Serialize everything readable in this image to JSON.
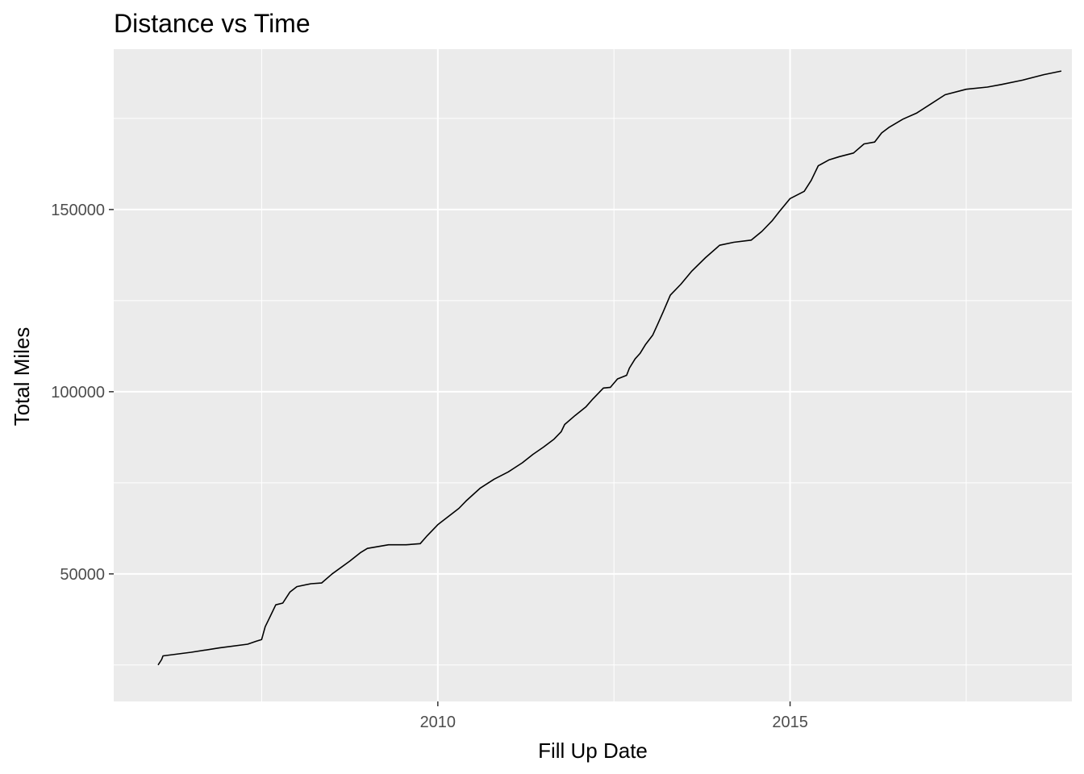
{
  "chart_data": {
    "type": "line",
    "title": "Distance vs Time",
    "xlabel": "Fill Up Date",
    "ylabel": "Total Miles",
    "xlim": [
      2005.4,
      2019.0
    ],
    "ylim": [
      15000,
      194000
    ],
    "x_major_ticks": [
      2010,
      2015
    ],
    "x_minor_ticks": [
      2007.5,
      2012.5,
      2017.5
    ],
    "y_major_ticks": [
      50000,
      100000,
      150000
    ],
    "y_minor_ticks": [
      25000,
      75000,
      125000,
      175000
    ],
    "x_tick_labels": [
      "2010",
      "2015"
    ],
    "y_tick_labels": [
      "50000",
      "100000",
      "150000"
    ],
    "grid": true,
    "legend": "none",
    "series": [
      {
        "name": "Total Miles",
        "color": "#000000",
        "x": [
          2006.03,
          2006.08,
          2006.1,
          2006.5,
          2006.9,
          2007.3,
          2007.42,
          2007.5,
          2007.55,
          2007.6,
          2007.7,
          2007.8,
          2007.85,
          2007.9,
          2008.0,
          2008.2,
          2008.35,
          2008.5,
          2008.75,
          2008.9,
          2009.0,
          2009.3,
          2009.55,
          2009.75,
          2009.85,
          2010.0,
          2010.3,
          2010.4,
          2010.6,
          2010.8,
          2011.0,
          2011.2,
          2011.35,
          2011.5,
          2011.65,
          2011.75,
          2011.8,
          2011.95,
          2012.1,
          2012.2,
          2012.35,
          2012.45,
          2012.55,
          2012.68,
          2012.72,
          2012.8,
          2012.87,
          2012.95,
          2013.05,
          2013.12,
          2013.2,
          2013.3,
          2013.45,
          2013.6,
          2013.8,
          2014.0,
          2014.2,
          2014.45,
          2014.6,
          2014.75,
          2014.85,
          2015.0,
          2015.2,
          2015.3,
          2015.4,
          2015.55,
          2015.7,
          2015.9,
          2016.05,
          2016.2,
          2016.3,
          2016.4,
          2016.6,
          2016.8,
          2017.0,
          2017.2,
          2017.5,
          2017.8,
          2018.0,
          2018.3,
          2018.6,
          2018.85
        ],
        "y": [
          25000,
          26500,
          27500,
          28500,
          29700,
          30700,
          31500,
          32000,
          35500,
          37500,
          41500,
          42000,
          43500,
          45000,
          46500,
          47300,
          47500,
          50000,
          53500,
          55800,
          57000,
          58000,
          58000,
          58300,
          60500,
          63500,
          68000,
          70000,
          73500,
          76000,
          78000,
          80500,
          82800,
          84800,
          87000,
          89000,
          91000,
          93500,
          95800,
          98000,
          101000,
          101200,
          103500,
          104500,
          106500,
          109000,
          110500,
          113000,
          115500,
          118500,
          122000,
          126500,
          129500,
          133000,
          136800,
          140200,
          141000,
          141600,
          144000,
          147000,
          149500,
          153000,
          155000,
          158000,
          162000,
          163600,
          164500,
          165500,
          168000,
          168500,
          171000,
          172500,
          174800,
          176500,
          179000,
          181500,
          183000,
          183600,
          184300,
          185500,
          187000,
          188000
        ]
      }
    ]
  }
}
